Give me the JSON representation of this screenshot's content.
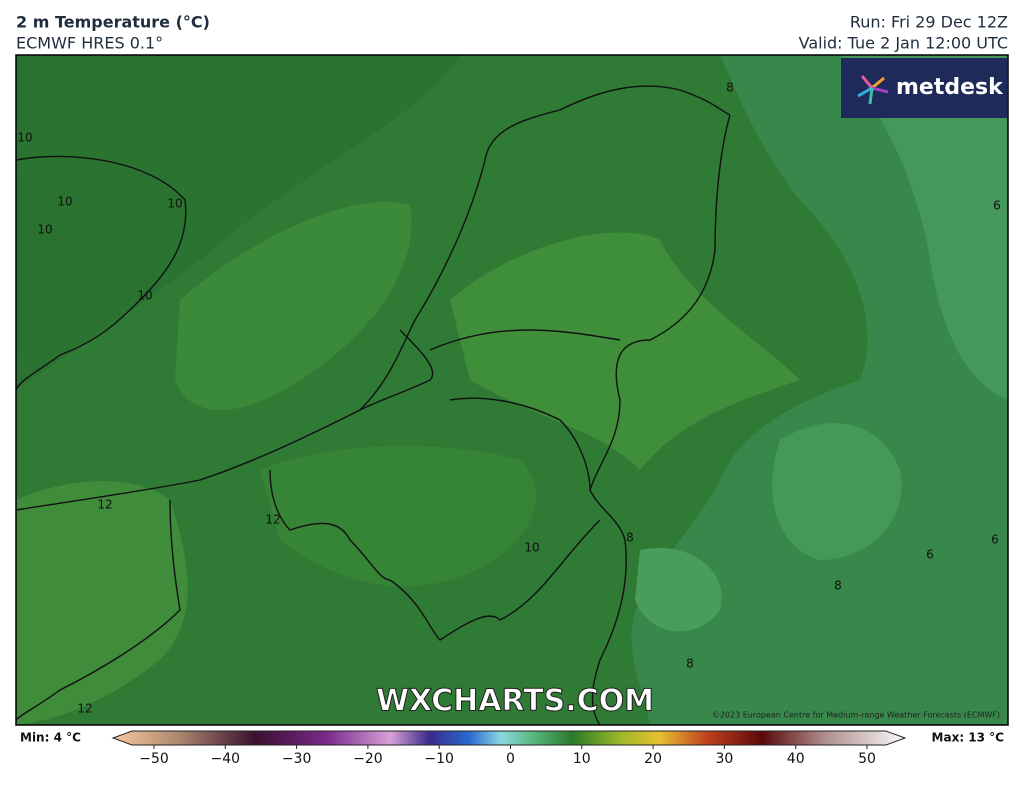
{
  "header": {
    "title": "2 m Temperature (°C)",
    "model": "ECMWF HRES 0.1°",
    "run": "Run: Fri 29 Dec 12Z",
    "valid": "Valid: Tue 2 Jan 12:00 UTC"
  },
  "branding": {
    "logo": "metdesk",
    "watermark": "WXCHARTS.COM",
    "copyright": "©2023 European Centre for Medium-range Weather Forecasts (ECMWF)"
  },
  "contour_labels": [
    "10",
    "10",
    "10",
    "10",
    "10",
    "12",
    "12",
    "10",
    "12",
    "8",
    "6",
    "6",
    "6",
    "8",
    "8",
    "8"
  ],
  "colorbar": {
    "min_label": "Min: 4 °C",
    "max_label": "Max: 13 °C",
    "ticks": [
      {
        "value": -50,
        "label": "−50"
      },
      {
        "value": -40,
        "label": "−40"
      },
      {
        "value": -30,
        "label": "−30"
      },
      {
        "value": -20,
        "label": "−20"
      },
      {
        "value": -10,
        "label": "−10"
      },
      0,
      10,
      20,
      30,
      40,
      50
    ]
  }
}
